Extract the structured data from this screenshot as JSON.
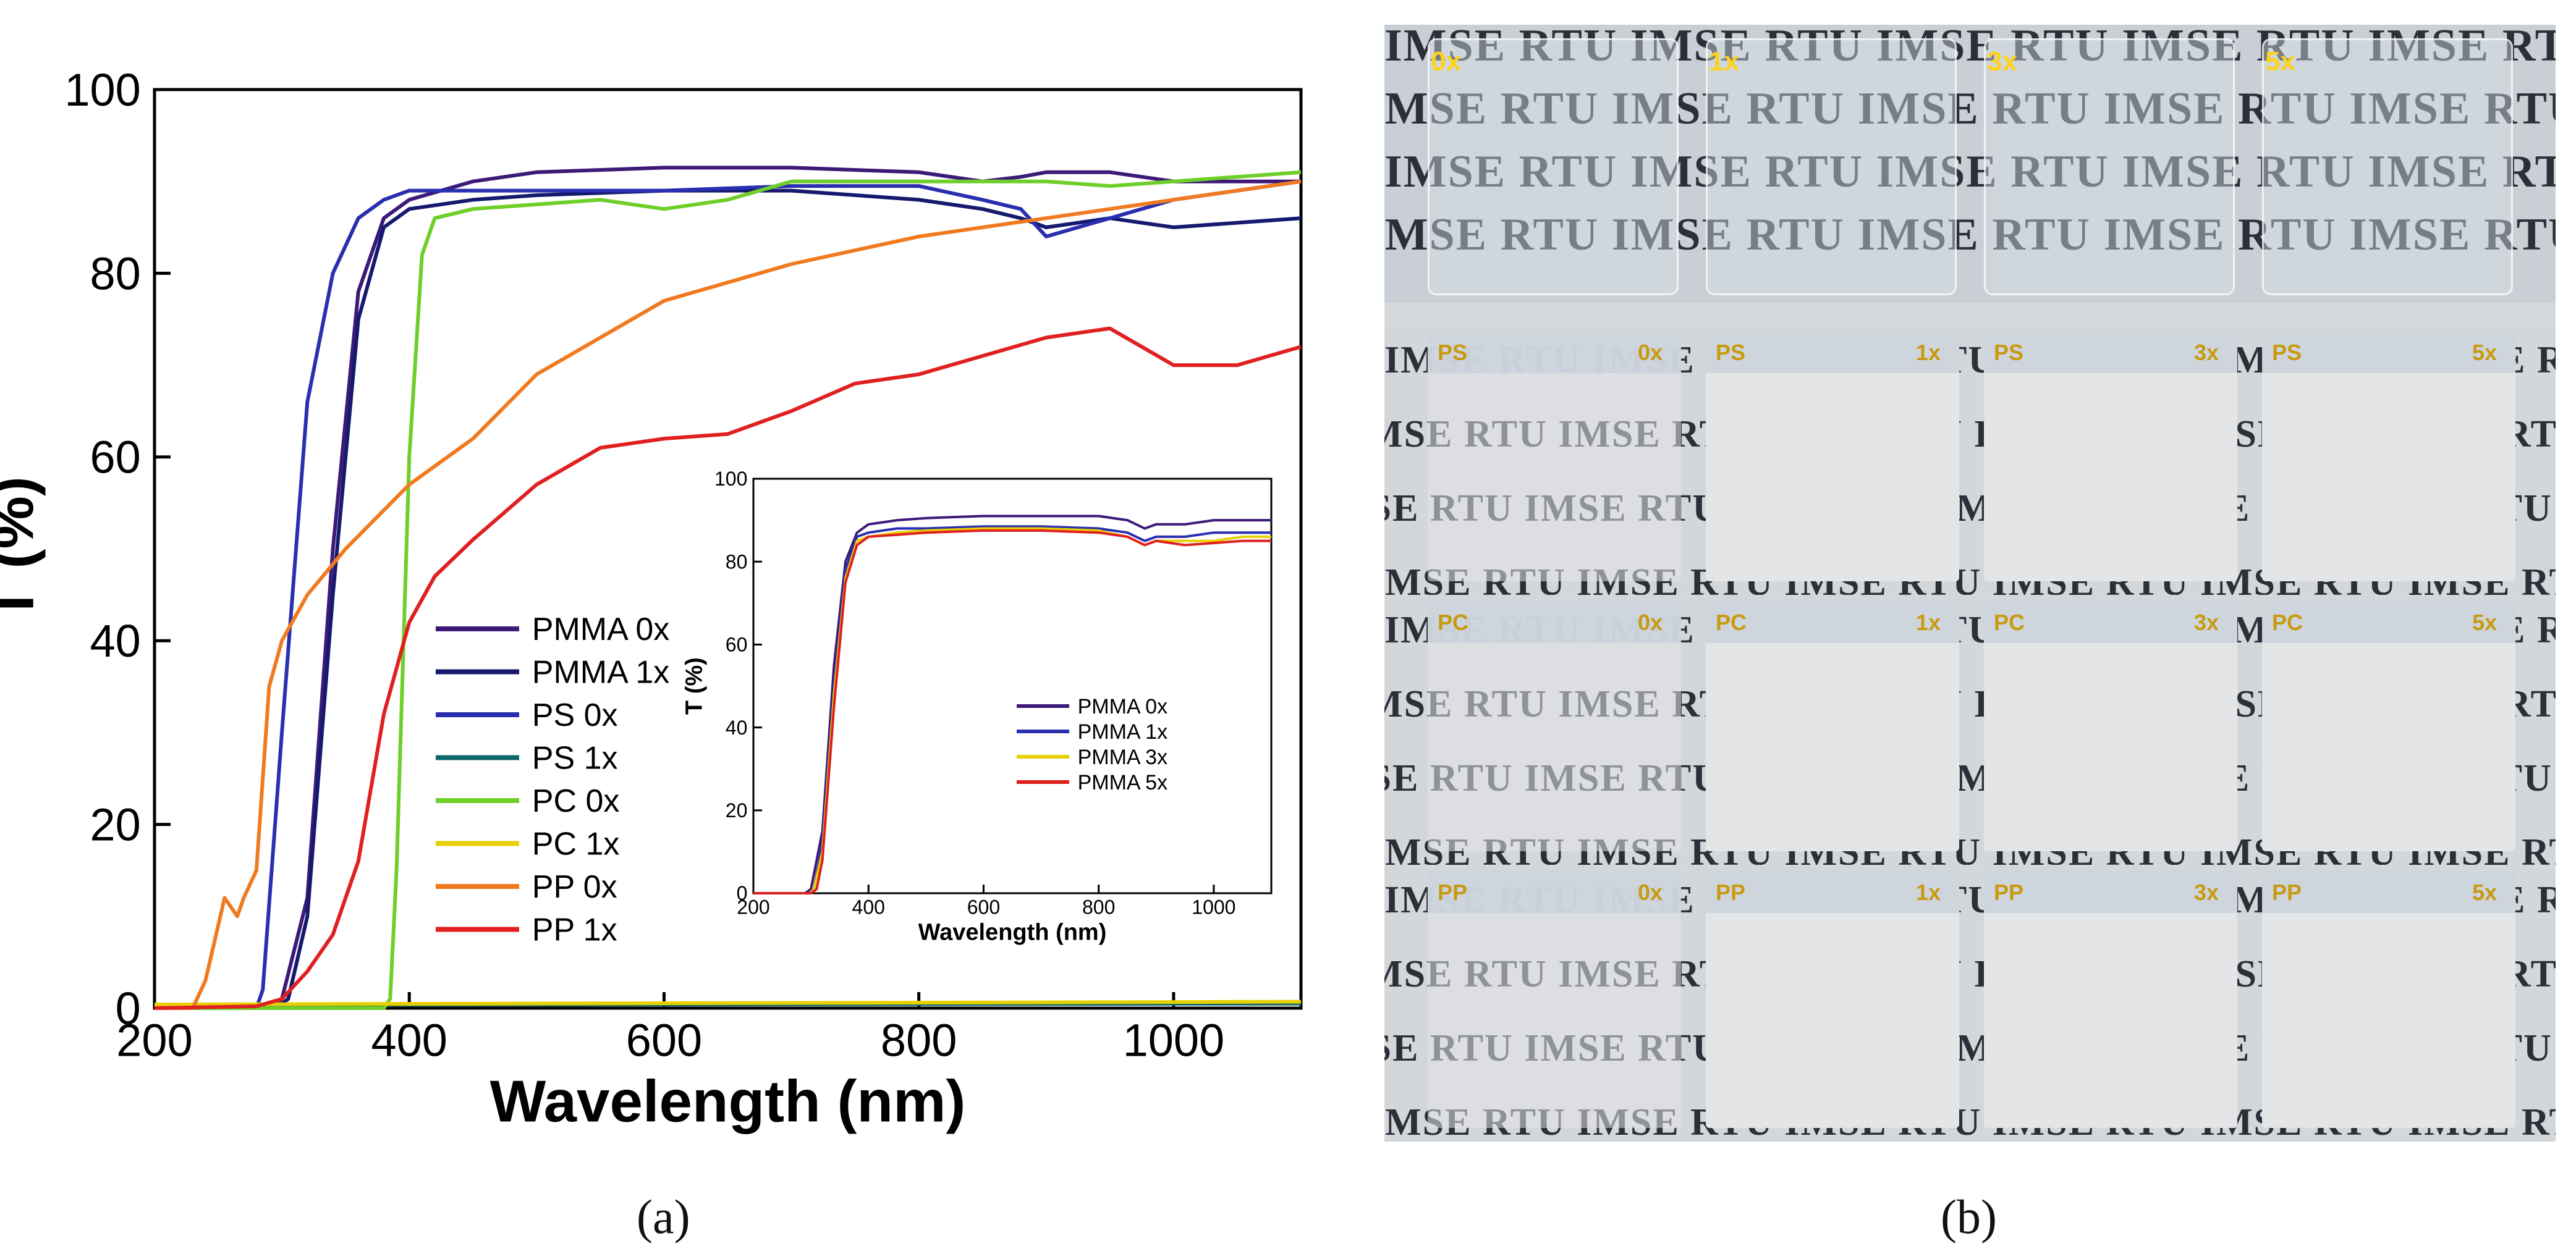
{
  "chart_data": [
    {
      "type": "line",
      "xlabel": "Wavelength (nm)",
      "ylabel": "T (%)",
      "xlim": [
        200,
        1100
      ],
      "ylim": [
        0,
        100
      ],
      "xticks": [
        200,
        400,
        600,
        800,
        1000
      ],
      "yticks": [
        0,
        20,
        40,
        60,
        80,
        100
      ],
      "legend_position": "lower-center-left",
      "series": [
        {
          "name": "PMMA 0x",
          "color": "#3d1a78",
          "x": [
            200,
            290,
            300,
            320,
            340,
            360,
            380,
            400,
            450,
            500,
            600,
            700,
            800,
            850,
            880,
            900,
            950,
            1000,
            1100
          ],
          "y": [
            0,
            0,
            1,
            12,
            50,
            78,
            86,
            88,
            90,
            91,
            91.5,
            91.5,
            91,
            90,
            90.5,
            91,
            91,
            90,
            90
          ]
        },
        {
          "name": "PMMA 1x",
          "color": "#151a6e",
          "x": [
            200,
            295,
            305,
            320,
            340,
            360,
            380,
            400,
            450,
            500,
            600,
            700,
            800,
            850,
            880,
            900,
            950,
            1000,
            1100
          ],
          "y": [
            0,
            0,
            1,
            10,
            45,
            75,
            85,
            87,
            88,
            88.5,
            89,
            89,
            88,
            87,
            86,
            85,
            86,
            85,
            86
          ]
        },
        {
          "name": "PS 0x",
          "color": "#2a2fb0",
          "x": [
            200,
            280,
            285,
            300,
            320,
            340,
            360,
            380,
            400,
            450,
            500,
            600,
            700,
            800,
            850,
            880,
            900,
            950,
            1000,
            1100
          ],
          "y": [
            0,
            0,
            2,
            30,
            66,
            80,
            86,
            88,
            89,
            89,
            89,
            89,
            89.5,
            89.5,
            88,
            87,
            84,
            86,
            88,
            90
          ]
        },
        {
          "name": "PS 1x",
          "color": "#0e6a6a",
          "x": [
            200,
            1100
          ],
          "y": [
            0.3,
            0.5
          ]
        },
        {
          "name": "PC 0x",
          "color": "#6ecf2a",
          "x": [
            200,
            380,
            385,
            390,
            400,
            410,
            420,
            450,
            500,
            550,
            600,
            650,
            700,
            800,
            900,
            950,
            1000,
            1100
          ],
          "y": [
            0,
            0,
            1,
            15,
            60,
            82,
            86,
            87,
            87.5,
            88,
            87,
            88,
            90,
            90,
            90,
            89.5,
            90,
            91
          ]
        },
        {
          "name": "PC 1x",
          "color": "#e8d000",
          "x": [
            200,
            1100
          ],
          "y": [
            0.4,
            0.7
          ]
        },
        {
          "name": "PP 0x",
          "color": "#f07a20",
          "x": [
            200,
            230,
            240,
            255,
            265,
            270,
            280,
            290,
            300,
            320,
            350,
            400,
            450,
            500,
            600,
            700,
            800,
            900,
            1000,
            1100
          ],
          "y": [
            0,
            0,
            3,
            12,
            10,
            12,
            15,
            35,
            40,
            45,
            50,
            57,
            62,
            69,
            77,
            81,
            84,
            86,
            88,
            90
          ]
        },
        {
          "name": "PP 1x",
          "color": "#e02020",
          "x": [
            200,
            280,
            300,
            320,
            340,
            360,
            380,
            400,
            420,
            450,
            500,
            550,
            600,
            650,
            700,
            750,
            800,
            850,
            900,
            950,
            1000,
            1050,
            1100
          ],
          "y": [
            0,
            0.2,
            1,
            4,
            8,
            16,
            32,
            42,
            47,
            51,
            57,
            61,
            62,
            62.5,
            65,
            68,
            69,
            71,
            73,
            74,
            70,
            70,
            72
          ]
        }
      ]
    },
    {
      "type": "line",
      "xlabel": "Wavelength (nm)",
      "ylabel": "T (%)",
      "xlim": [
        200,
        1100
      ],
      "ylim": [
        0,
        100
      ],
      "xticks": [
        200,
        400,
        600,
        800,
        1000
      ],
      "yticks": [
        0,
        20,
        40,
        60,
        80,
        100
      ],
      "legend_position": "lower-right",
      "series": [
        {
          "name": "PMMA 0x",
          "color": "#3d1a78",
          "x": [
            200,
            290,
            300,
            320,
            340,
            360,
            380,
            400,
            450,
            500,
            600,
            700,
            800,
            850,
            880,
            900,
            950,
            1000,
            1050,
            1100
          ],
          "y": [
            0,
            0,
            1,
            15,
            55,
            80,
            87,
            89,
            90,
            90.5,
            91,
            91,
            91,
            90,
            88,
            89,
            89,
            90,
            90,
            90
          ]
        },
        {
          "name": "PMMA 1x",
          "color": "#2a2fb0",
          "x": [
            200,
            295,
            305,
            320,
            340,
            360,
            380,
            400,
            450,
            500,
            600,
            700,
            800,
            850,
            880,
            900,
            950,
            1000,
            1050,
            1100
          ],
          "y": [
            0,
            0,
            1,
            12,
            50,
            78,
            86,
            87,
            88,
            88,
            88.5,
            88.5,
            88,
            87,
            85,
            86,
            86,
            87,
            87,
            87
          ]
        },
        {
          "name": "PMMA 3x",
          "color": "#e8d000",
          "x": [
            200,
            298,
            305,
            320,
            340,
            360,
            380,
            400,
            450,
            500,
            600,
            700,
            800,
            850,
            880,
            900,
            950,
            1000,
            1050,
            1100
          ],
          "y": [
            0,
            0,
            1,
            10,
            48,
            76,
            85,
            86,
            87,
            87.5,
            88,
            88,
            87.5,
            86,
            84,
            85,
            85,
            85,
            86,
            86
          ]
        },
        {
          "name": "PMMA 5x",
          "color": "#e02020",
          "x": [
            200,
            300,
            310,
            320,
            340,
            360,
            380,
            400,
            450,
            500,
            600,
            700,
            800,
            850,
            880,
            900,
            950,
            1000,
            1050,
            1100
          ],
          "y": [
            0,
            0,
            1,
            8,
            45,
            75,
            84,
            86,
            86.5,
            87,
            87.5,
            87.5,
            87,
            86,
            84,
            85,
            84,
            84.5,
            85,
            85
          ]
        }
      ]
    }
  ],
  "photo": {
    "watermark_text": "IMSE RTU ",
    "top_row": {
      "labels": [
        "0x",
        "1x",
        "3x",
        "5x"
      ],
      "label_color": "#ffd21a"
    },
    "rows": [
      {
        "material": "PS",
        "labels": [
          "0x",
          "1x",
          "3x",
          "5x"
        ]
      },
      {
        "material": "PC",
        "labels": [
          "0x",
          "1x",
          "3x",
          "5x"
        ]
      },
      {
        "material": "PP",
        "labels": [
          "0x",
          "1x",
          "3x",
          "5x"
        ]
      }
    ],
    "label_color": "#c89a10"
  },
  "captions": {
    "a": "(a)",
    "b": "(b)"
  }
}
